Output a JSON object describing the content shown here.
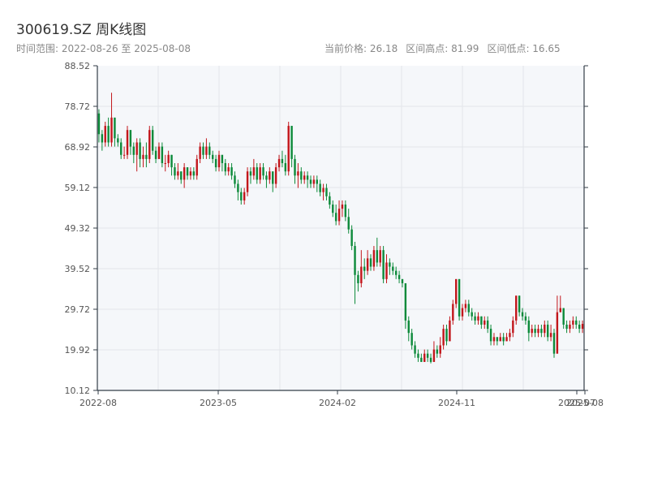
{
  "header": {
    "title": "300619.SZ 周K线图",
    "subtitle": "时间范围: 2022-08-26 至 2025-08-08",
    "current_price": "当前价格: 26.18",
    "high": "区间高点: 81.99",
    "low": "区间低点: 16.65"
  },
  "colors": {
    "up": "#c2161b",
    "down": "#0d8a3a",
    "plot_bg": "#f5f7fa",
    "grid": "#e2e5ea",
    "axis": "#333d47"
  },
  "chart_data": {
    "type": "candlestick",
    "title": "300619.SZ 周K线图",
    "ylim": [
      10.12,
      88.52
    ],
    "y_ticks": [
      "88.52",
      "78.72",
      "68.92",
      "59.12",
      "49.32",
      "39.52",
      "29.72",
      "19.92",
      "10.12"
    ],
    "x_ticks": [
      "2022-08",
      "2023-05",
      "2024-02",
      "2024-11",
      "2025-07",
      "2025-08"
    ],
    "grid": true,
    "series": [
      {
        "values": [
          [
            77,
            72,
            78,
            70
          ],
          [
            72,
            70,
            73,
            68
          ],
          [
            70,
            74,
            75,
            69
          ],
          [
            74,
            70,
            76,
            69
          ],
          [
            70,
            76,
            82,
            69
          ],
          [
            76,
            71,
            76,
            69
          ],
          [
            71,
            70,
            72,
            69
          ],
          [
            70,
            67,
            71,
            66
          ],
          [
            67,
            67,
            69,
            66
          ],
          [
            67,
            73,
            74,
            66
          ],
          [
            73,
            69,
            73,
            67
          ],
          [
            69,
            67,
            70,
            65
          ],
          [
            67,
            70,
            71,
            63
          ],
          [
            70,
            66,
            71,
            64
          ],
          [
            66,
            67,
            69,
            64
          ],
          [
            67,
            66,
            70,
            64
          ],
          [
            66,
            73,
            74,
            65
          ],
          [
            73,
            68,
            74,
            67
          ],
          [
            68,
            66,
            69,
            65
          ],
          [
            66,
            69,
            70,
            66
          ],
          [
            69,
            65,
            70,
            64
          ],
          [
            65,
            65,
            67,
            63
          ],
          [
            65,
            67,
            68,
            64
          ],
          [
            67,
            64,
            67,
            62
          ],
          [
            64,
            62,
            65,
            61
          ],
          [
            62,
            63,
            65,
            61
          ],
          [
            63,
            61,
            63,
            60
          ],
          [
            61,
            64,
            65,
            59
          ],
          [
            64,
            62,
            64,
            61
          ],
          [
            62,
            63,
            64,
            61
          ],
          [
            63,
            62,
            64,
            61
          ],
          [
            62,
            66,
            67,
            61
          ],
          [
            66,
            69,
            70,
            65
          ],
          [
            69,
            67,
            70,
            66
          ],
          [
            67,
            69,
            71,
            66
          ],
          [
            69,
            67,
            70,
            66
          ],
          [
            67,
            66,
            68,
            65
          ],
          [
            66,
            64,
            67,
            63
          ],
          [
            64,
            67,
            68,
            63
          ],
          [
            67,
            65,
            67,
            63
          ],
          [
            65,
            63,
            66,
            62
          ],
          [
            63,
            64,
            65,
            62
          ],
          [
            64,
            62,
            65,
            61
          ],
          [
            62,
            60,
            63,
            59
          ],
          [
            60,
            58,
            61,
            56
          ],
          [
            58,
            56,
            59,
            55
          ],
          [
            56,
            58,
            59,
            55
          ],
          [
            58,
            63,
            64,
            57
          ],
          [
            63,
            62,
            64,
            60
          ],
          [
            62,
            64,
            66,
            61
          ],
          [
            64,
            61,
            65,
            60
          ],
          [
            61,
            64,
            65,
            60
          ],
          [
            64,
            62,
            65,
            61
          ],
          [
            62,
            61,
            63,
            59
          ],
          [
            61,
            63,
            64,
            60
          ],
          [
            63,
            60,
            63,
            58
          ],
          [
            60,
            64,
            65,
            59
          ],
          [
            64,
            66,
            67,
            63
          ],
          [
            66,
            65,
            68,
            64
          ],
          [
            65,
            63,
            67,
            62
          ],
          [
            63,
            74,
            75,
            62
          ],
          [
            74,
            66,
            74,
            64
          ],
          [
            66,
            62,
            67,
            60
          ],
          [
            62,
            63,
            65,
            59
          ],
          [
            63,
            61,
            64,
            60
          ],
          [
            61,
            62,
            63,
            60
          ],
          [
            62,
            61,
            63,
            59
          ],
          [
            61,
            60,
            62,
            59
          ],
          [
            60,
            61,
            62,
            59
          ],
          [
            61,
            60,
            62,
            58
          ],
          [
            60,
            58,
            61,
            57
          ],
          [
            58,
            59,
            60,
            56
          ],
          [
            59,
            57,
            60,
            56
          ],
          [
            57,
            55,
            58,
            54
          ],
          [
            55,
            53,
            56,
            52
          ],
          [
            53,
            51,
            55,
            50
          ],
          [
            51,
            54,
            56,
            50
          ],
          [
            54,
            55,
            56,
            52
          ],
          [
            55,
            52,
            56,
            51
          ],
          [
            52,
            49,
            54,
            48
          ],
          [
            49,
            45,
            50,
            44
          ],
          [
            45,
            38,
            46,
            31
          ],
          [
            38,
            36,
            39,
            34
          ],
          [
            36,
            40,
            44,
            35
          ],
          [
            40,
            39,
            42,
            37
          ],
          [
            39,
            42,
            44,
            38
          ],
          [
            42,
            40,
            43,
            39
          ],
          [
            40,
            44,
            45,
            39
          ],
          [
            44,
            41,
            47,
            40
          ],
          [
            41,
            44,
            45,
            40
          ],
          [
            44,
            37,
            45,
            36
          ],
          [
            37,
            41,
            43,
            36
          ],
          [
            41,
            40,
            42,
            38
          ],
          [
            40,
            39,
            41,
            38
          ],
          [
            39,
            38,
            40,
            37
          ],
          [
            38,
            37,
            39,
            36
          ],
          [
            37,
            36,
            37,
            35
          ],
          [
            36,
            27,
            36,
            25
          ],
          [
            27,
            24,
            28,
            22
          ],
          [
            24,
            21,
            25,
            20
          ],
          [
            21,
            19,
            22,
            18
          ],
          [
            19,
            18,
            20,
            17
          ],
          [
            18,
            17,
            19,
            17
          ],
          [
            17,
            19,
            20,
            17
          ],
          [
            19,
            18,
            20,
            17
          ],
          [
            18,
            17,
            19,
            16.65
          ],
          [
            17,
            20,
            22,
            17
          ],
          [
            20,
            19,
            21,
            18
          ],
          [
            19,
            21,
            23,
            18
          ],
          [
            21,
            25,
            26,
            20
          ],
          [
            25,
            22,
            26,
            21
          ],
          [
            22,
            27,
            28,
            22
          ],
          [
            27,
            31,
            32,
            26
          ],
          [
            31,
            37,
            37,
            30
          ],
          [
            37,
            28,
            37,
            27
          ],
          [
            28,
            30,
            31,
            27
          ],
          [
            30,
            31,
            32,
            29
          ],
          [
            31,
            29,
            32,
            28
          ],
          [
            29,
            28,
            30,
            27
          ],
          [
            28,
            27,
            29,
            26
          ],
          [
            27,
            28,
            29,
            26
          ],
          [
            28,
            26,
            28,
            25
          ],
          [
            26,
            27,
            28,
            25
          ],
          [
            27,
            25,
            28,
            24
          ],
          [
            25,
            22,
            26,
            21
          ],
          [
            22,
            23,
            24,
            21
          ],
          [
            23,
            22,
            23,
            21
          ],
          [
            22,
            23,
            24,
            22
          ],
          [
            23,
            22,
            24,
            21
          ],
          [
            22,
            23,
            24,
            22
          ],
          [
            23,
            24,
            25,
            22
          ],
          [
            24,
            27,
            28,
            23
          ],
          [
            27,
            33,
            33,
            26
          ],
          [
            33,
            29,
            33,
            28
          ],
          [
            29,
            28,
            30,
            27
          ],
          [
            28,
            27,
            29,
            26
          ],
          [
            27,
            24,
            28,
            22
          ],
          [
            24,
            25,
            26,
            23
          ],
          [
            25,
            24,
            26,
            23
          ],
          [
            24,
            25,
            26,
            23
          ],
          [
            25,
            24,
            26,
            23
          ],
          [
            24,
            26,
            27,
            23
          ],
          [
            26,
            23,
            27,
            22
          ],
          [
            23,
            24,
            26,
            22
          ],
          [
            24,
            19,
            25,
            18
          ],
          [
            19,
            29,
            33,
            19
          ],
          [
            29,
            30,
            33,
            29
          ],
          [
            30,
            26,
            30,
            25
          ],
          [
            26,
            25,
            27,
            24
          ],
          [
            25,
            26,
            27,
            24
          ],
          [
            26,
            27,
            28,
            25
          ],
          [
            27,
            26,
            28,
            25
          ],
          [
            26,
            25,
            27,
            24
          ],
          [
            25,
            26.18,
            27,
            24
          ]
        ]
      }
    ]
  }
}
